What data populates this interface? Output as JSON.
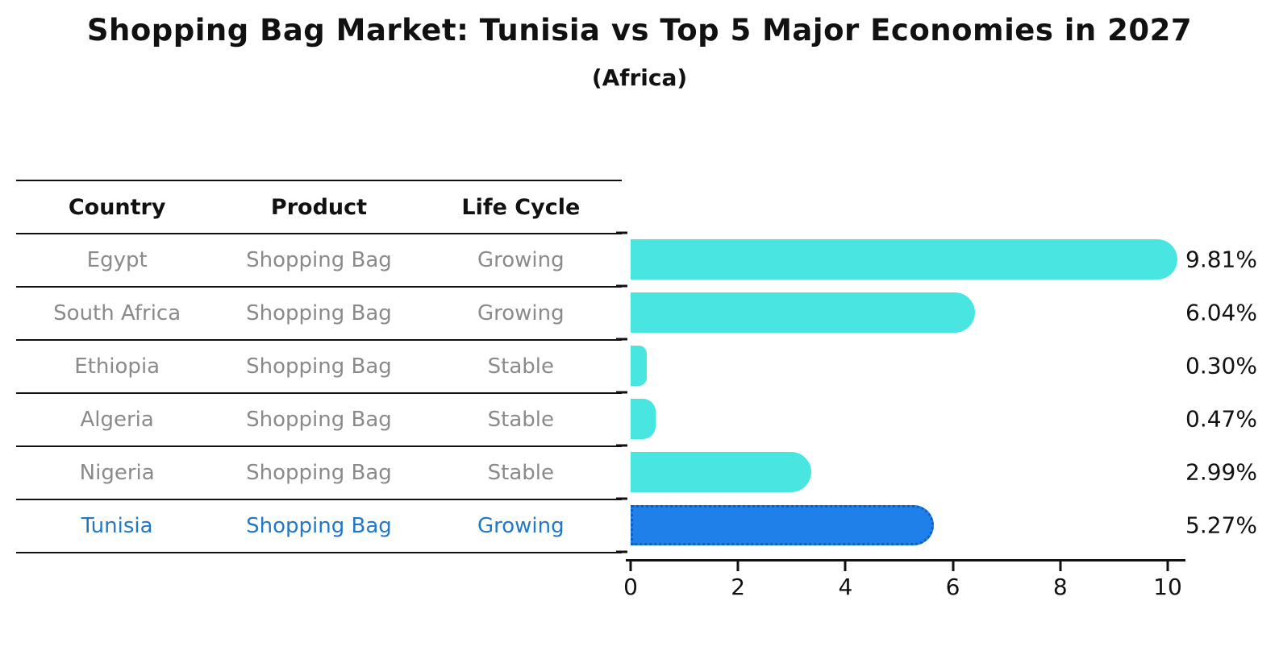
{
  "title": "Shopping Bag Market: Tunisia vs Top 5 Major Economies in 2027",
  "subtitle": "(Africa)",
  "table": {
    "headers": [
      "Country",
      "Product",
      "Life Cycle"
    ],
    "rows": [
      {
        "country": "Egypt",
        "product": "Shopping Bag",
        "life_cycle": "Growing",
        "highlight": false
      },
      {
        "country": "South Africa",
        "product": "Shopping Bag",
        "life_cycle": "Growing",
        "highlight": false
      },
      {
        "country": "Ethiopia",
        "product": "Shopping Bag",
        "life_cycle": "Stable",
        "highlight": false
      },
      {
        "country": "Algeria",
        "product": "Shopping Bag",
        "life_cycle": "Stable",
        "highlight": false
      },
      {
        "country": "Nigeria",
        "product": "Shopping Bag",
        "life_cycle": "Stable",
        "highlight": false
      },
      {
        "country": "Tunisia",
        "product": "Shopping Bag",
        "life_cycle": "Growing",
        "highlight": true
      }
    ]
  },
  "chart_data": {
    "type": "bar",
    "orientation": "horizontal",
    "title": "Shopping Bag Market: Tunisia vs Top 5 Major Economies in 2027",
    "subtitle": "(Africa)",
    "categories": [
      "Egypt",
      "South Africa",
      "Ethiopia",
      "Algeria",
      "Nigeria",
      "Tunisia"
    ],
    "values": [
      9.81,
      6.04,
      0.3,
      0.47,
      2.99,
      5.27
    ],
    "labels": [
      "9.81%",
      "6.04%",
      "0.30%",
      "0.47%",
      "2.99%",
      "5.27%"
    ],
    "highlight_index": 5,
    "xlim": [
      0,
      10
    ],
    "x_ticks": [
      0,
      2,
      4,
      6,
      8,
      10
    ],
    "x_tick_labels": [
      "0",
      "2",
      "4",
      "6",
      "8",
      "10"
    ],
    "xlabel": "",
    "ylabel": "",
    "grid": false,
    "legend": false,
    "value_suffix": "%"
  },
  "colors": {
    "bar": "#48e5e1",
    "highlight_bar": "#1e80e8",
    "highlight_bar_edge": "#0d5fc4",
    "highlight_text": "#2278c8",
    "table_text": "#8a8a8a",
    "axis": "#111111",
    "background": "#ffffff"
  }
}
